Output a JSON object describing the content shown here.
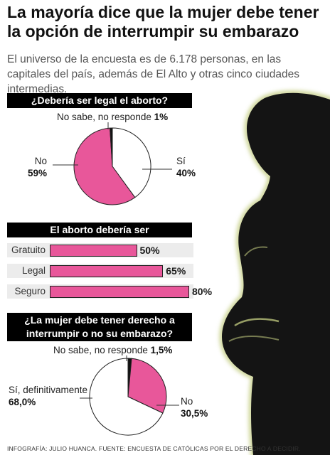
{
  "header": {
    "title": "La mayoría dice que la mujer debe tener la opción de interrumpir su embarazo",
    "subtitle": "El universo de la encuesta es de 6.178 personas, en las capitales del país, además de El Alto y otras cinco ciudades intermedias."
  },
  "colors": {
    "accent": "#e8579a",
    "dark": "#000000",
    "silhouette_glow": "#c8d08a"
  },
  "chart_data": [
    {
      "type": "pie",
      "title": "¿Debería ser legal el aborto?",
      "slices": [
        {
          "label": "Sí",
          "value": 40,
          "value_label": "40%",
          "color": "#ffffff"
        },
        {
          "label": "No",
          "value": 59,
          "value_label": "59%",
          "color": "#e8579a"
        },
        {
          "label": "No sabe, no responde",
          "value": 1,
          "value_label": "1%",
          "color": "#111111"
        }
      ]
    },
    {
      "type": "bar",
      "title": "El aborto debería ser",
      "categories": [
        "Gratuito",
        "Legal",
        "Seguro"
      ],
      "values": [
        50,
        65,
        80
      ],
      "value_labels": [
        "50%",
        "65%",
        "80%"
      ],
      "xlim": [
        0,
        80
      ]
    },
    {
      "type": "pie",
      "title": "¿La mujer debe tener derecho a interrumpir o no su embarazo?",
      "slices": [
        {
          "label": "Sí, definitivamente",
          "value": 68.0,
          "value_label": "68,0%",
          "color": "#ffffff"
        },
        {
          "label": "No",
          "value": 30.5,
          "value_label": "30,5%",
          "color": "#e8579a"
        },
        {
          "label": "No sabe, no responde",
          "value": 1.5,
          "value_label": "1,5%",
          "color": "#111111"
        }
      ]
    }
  ],
  "footer": {
    "credit": "INFOGRAFÍA: JULIO HUANCA. FUENTE: ENCUESTA DE CATÓLICAS POR EL DERECHO A DECIDIR."
  }
}
